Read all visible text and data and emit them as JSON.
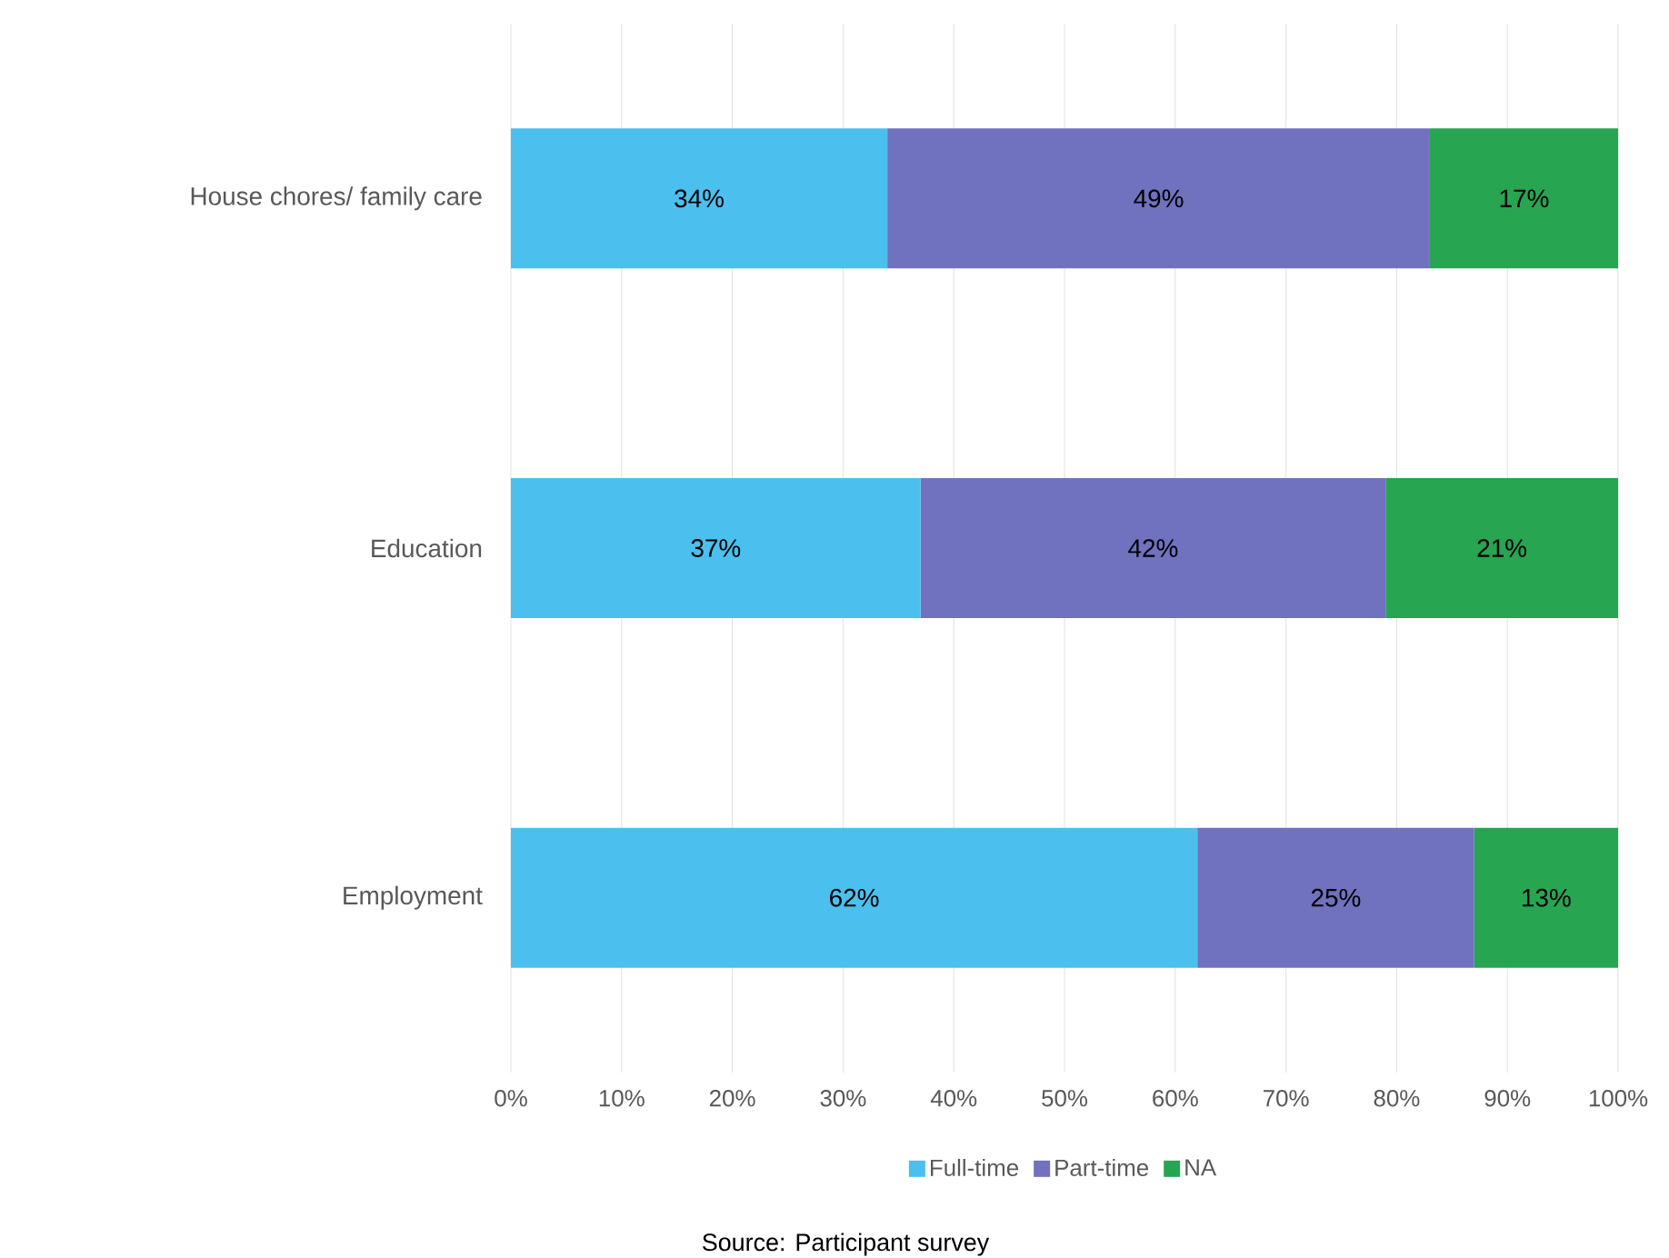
{
  "chart_data": {
    "type": "bar",
    "orientation": "horizontal",
    "stacked": true,
    "categories": [
      "House chores/ family care",
      "Education",
      "Employment"
    ],
    "series": [
      {
        "name": "Full-time",
        "color": "#4bc0ee",
        "values": [
          34,
          37,
          62
        ],
        "value_labels": [
          "34%",
          "37%",
          "62%"
        ]
      },
      {
        "name": "Part-time",
        "color": "#7071bf",
        "values": [
          49,
          42,
          25
        ],
        "value_labels": [
          "49%",
          "42%",
          "25%"
        ]
      },
      {
        "name": "NA",
        "color": "#27a551",
        "values": [
          17,
          21,
          13
        ],
        "value_labels": [
          "17%",
          "21%",
          "13%"
        ]
      }
    ],
    "xlim": [
      0,
      100
    ],
    "xticks": [
      {
        "value": 0,
        "label": "0%"
      },
      {
        "value": 10,
        "label": "10%"
      },
      {
        "value": 20,
        "label": "20%"
      },
      {
        "value": 30,
        "label": "30%"
      },
      {
        "value": 40,
        "label": "40%"
      },
      {
        "value": 50,
        "label": "50%"
      },
      {
        "value": 60,
        "label": "60%"
      },
      {
        "value": 70,
        "label": "70%"
      },
      {
        "value": 80,
        "label": "80%"
      },
      {
        "value": 90,
        "label": "90%"
      },
      {
        "value": 100,
        "label": "100%"
      }
    ],
    "grid": "x",
    "legend": "bottom",
    "annotations": [
      "Source: Participant survey"
    ]
  }
}
